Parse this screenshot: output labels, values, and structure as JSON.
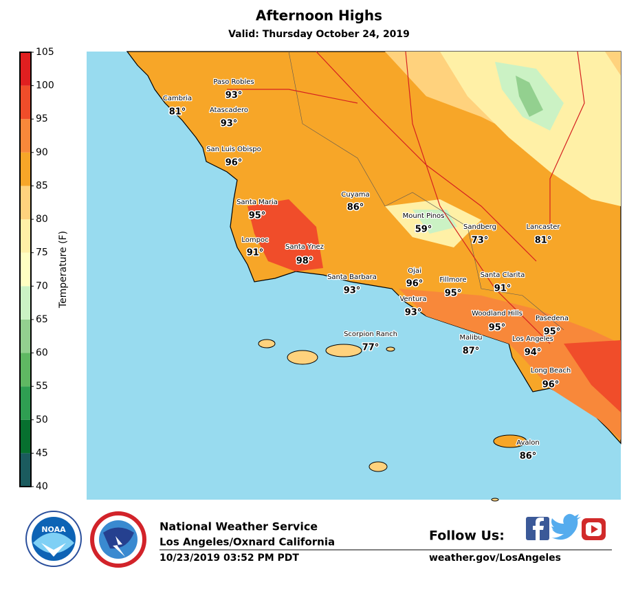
{
  "header": {
    "title": "Afternoon Highs",
    "subtitle": "Valid: Thursday October 24, 2019"
  },
  "colorbar": {
    "label": "Temperature (F)",
    "ticks": [
      40,
      45,
      50,
      55,
      60,
      65,
      70,
      75,
      80,
      85,
      90,
      95,
      100,
      105
    ],
    "colors": [
      "#1b5b5e",
      "#07702f",
      "#2f9f52",
      "#5fb862",
      "#93d08f",
      "#cbf2c4",
      "#ffffc2",
      "#fff0a6",
      "#ffd27d",
      "#f7a628",
      "#f8883a",
      "#f04d2a",
      "#e01f20"
    ]
  },
  "locations": [
    {
      "name": "Paso Robles",
      "temp": "93°"
    },
    {
      "name": "Cambria",
      "temp": "81°"
    },
    {
      "name": "Atascadero",
      "temp": "93°"
    },
    {
      "name": "San Luis Obispo",
      "temp": "96°"
    },
    {
      "name": "Cuyama",
      "temp": "86°"
    },
    {
      "name": "Santa Maria",
      "temp": "95°"
    },
    {
      "name": "Mount Pinos",
      "temp": "59°"
    },
    {
      "name": "Sandberg",
      "temp": "73°"
    },
    {
      "name": "Lancaster",
      "temp": "81°"
    },
    {
      "name": "Lompoc",
      "temp": "91°"
    },
    {
      "name": "Santa Ynez",
      "temp": "98°"
    },
    {
      "name": "Ojai",
      "temp": "96°"
    },
    {
      "name": "Santa Barbara",
      "temp": "93°"
    },
    {
      "name": "Fillmore",
      "temp": "95°"
    },
    {
      "name": "Santa Clarita",
      "temp": "91°"
    },
    {
      "name": "Ventura",
      "temp": "93°"
    },
    {
      "name": "Woodland Hills",
      "temp": "95°"
    },
    {
      "name": "Pasedena",
      "temp": "95°"
    },
    {
      "name": "Scorpion Ranch",
      "temp": "77°"
    },
    {
      "name": "Malibu",
      "temp": "87°"
    },
    {
      "name": "Los Angeles",
      "temp": "94°"
    },
    {
      "name": "Long Beach",
      "temp": "96°"
    },
    {
      "name": "Avalon",
      "temp": "86°"
    }
  ],
  "footer": {
    "logo": "NOAA",
    "org": "National Weather Service",
    "office": "Los Angeles/Oxnard California",
    "timestamp": "10/23/2019 03:52 PM PDT",
    "follow": "Follow Us:",
    "url": "weather.gov/LosAngeles"
  }
}
